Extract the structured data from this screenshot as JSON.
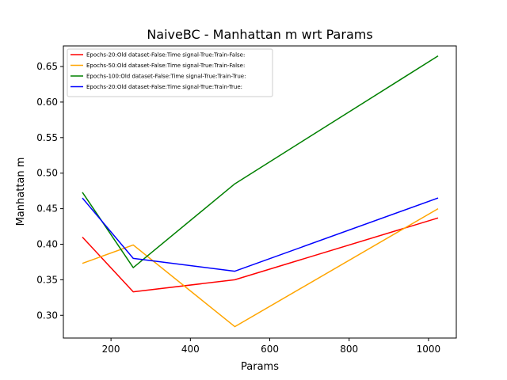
{
  "chart_data": {
    "type": "line",
    "title": "NaiveBC - Manhattan m wrt Params",
    "xlabel": "Params",
    "ylabel": "Manhattan m",
    "xlim": [
      80,
      1070
    ],
    "ylim": [
      0.268,
      0.679
    ],
    "xticks": [
      200,
      400,
      600,
      800,
      1000
    ],
    "yticks": [
      0.3,
      0.35,
      0.4,
      0.45,
      0.5,
      0.55,
      0.6,
      0.65
    ],
    "xtick_labels": [
      "200",
      "400",
      "600",
      "800",
      "1000"
    ],
    "ytick_labels": [
      "0.30",
      "0.35",
      "0.40",
      "0.45",
      "0.50",
      "0.55",
      "0.60",
      "0.65"
    ],
    "grid": false,
    "legend_position": "upper-left",
    "x": [
      128,
      256,
      512,
      1024
    ],
    "series": [
      {
        "name": "Epochs-20:Old dataset-False:Time signal-True:Train-False:",
        "color": "#ff0000",
        "values": [
          0.41,
          0.333,
          0.35,
          0.437
        ]
      },
      {
        "name": "Epochs-50:Old dataset-False:Time signal-True:Train-False:",
        "color": "#ffa500",
        "values": [
          0.373,
          0.399,
          0.284,
          0.45
        ]
      },
      {
        "name": "Epochs-100:Old dataset-False:Time signal-True:Train-True:",
        "color": "#008000",
        "values": [
          0.473,
          0.367,
          0.485,
          0.665
        ]
      },
      {
        "name": "Epochs-20:Old dataset-False:Time signal-True:Train-True:",
        "color": "#0000ff",
        "values": [
          0.465,
          0.38,
          0.362,
          0.465
        ]
      }
    ]
  }
}
